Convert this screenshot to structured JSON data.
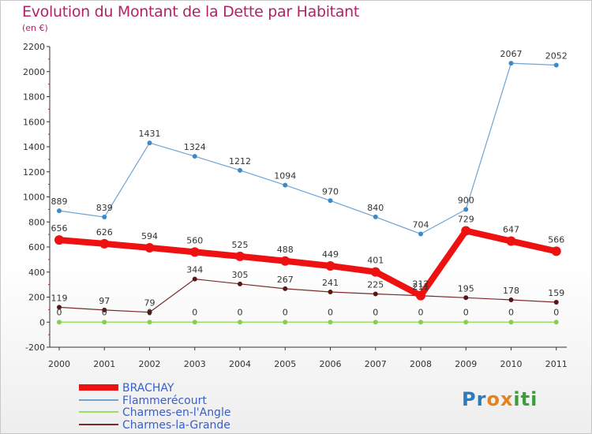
{
  "title": "Evolution du Montant de la Dette par Habitant",
  "subtitle": "(en €)",
  "logo": {
    "text": "Proxiti",
    "letters": [
      {
        "ch": "P",
        "color": "#2b7bbd"
      },
      {
        "ch": "r",
        "color": "#2b7bbd"
      },
      {
        "ch": "o",
        "color": "#e8821e"
      },
      {
        "ch": "x",
        "color": "#e8821e"
      },
      {
        "ch": "i",
        "color": "#3a9e3a"
      },
      {
        "ch": "t",
        "color": "#3a9e3a"
      },
      {
        "ch": "i",
        "color": "#3a9e3a"
      }
    ]
  },
  "chart_data": {
    "type": "line",
    "x": [
      "2000",
      "2001",
      "2002",
      "2003",
      "2004",
      "2005",
      "2006",
      "2007",
      "2008",
      "2009",
      "2010",
      "2011"
    ],
    "ylim": [
      -200,
      2200
    ],
    "yticks": [
      -200,
      0,
      200,
      400,
      600,
      800,
      1000,
      1200,
      1400,
      1600,
      1800,
      2000,
      2200
    ],
    "grid": false,
    "legend_position": "bottom",
    "series": [
      {
        "name": "BRACHAY",
        "color": "#ee1111",
        "values": [
          656,
          626,
          594,
          560,
          525,
          488,
          449,
          401,
          212,
          729,
          647,
          566
        ],
        "labels": [
          "656",
          "626",
          "594",
          "560",
          "525",
          "488",
          "449",
          "401",
          "212",
          "729",
          "647",
          "566"
        ]
      },
      {
        "name": "Flammerécourt",
        "color": "#6fa3d2",
        "values": [
          889,
          839,
          1431,
          1324,
          1212,
          1094,
          970,
          840,
          704,
          900,
          2067,
          2052
        ],
        "labels": [
          "889",
          "839",
          "1431",
          "1324",
          "1212",
          "1094",
          "970",
          "840",
          "704",
          "900",
          "2067",
          "2052"
        ]
      },
      {
        "name": "Charmes-en-l'Angle",
        "color": "#99dd66",
        "values": [
          0,
          0,
          0,
          0,
          0,
          0,
          0,
          0,
          0,
          0,
          0,
          0
        ],
        "labels": [
          "0",
          "0",
          "0",
          "0",
          "0",
          "0",
          "0",
          "0",
          "0",
          "0",
          "0",
          "0"
        ]
      },
      {
        "name": "Charmes-la-Grande",
        "color": "#7a2a2a",
        "values": [
          119,
          97,
          79,
          344,
          305,
          267,
          241,
          225,
          211,
          195,
          178,
          159
        ],
        "labels": [
          "119",
          "97",
          "79",
          "344",
          "305",
          "267",
          "241",
          "225",
          "211",
          "195",
          "178",
          "159"
        ]
      }
    ]
  }
}
